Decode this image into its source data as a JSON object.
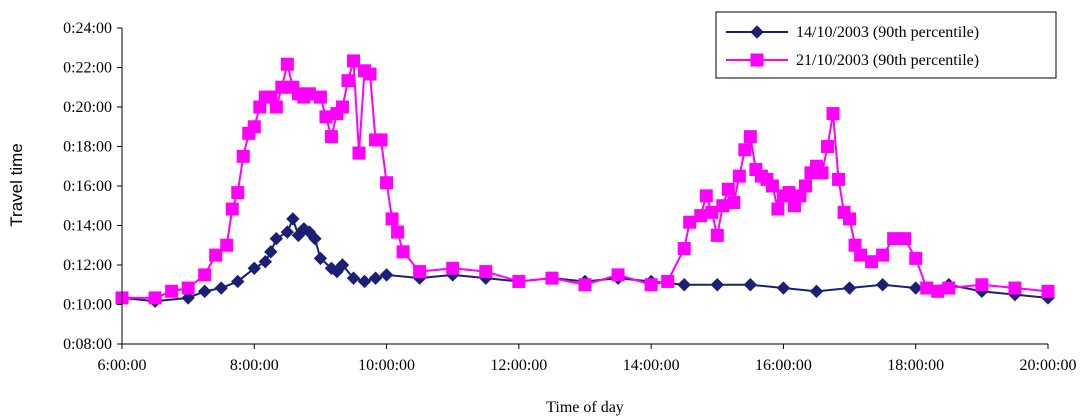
{
  "chart_data": {
    "type": "line",
    "xlabel": "Time of day",
    "ylabel": "Travel time",
    "xlim": [
      "6:00:00",
      "20:00:00"
    ],
    "ylim": [
      "0:08:00",
      "0:24:00"
    ],
    "x_ticks": [
      "6:00:00",
      "8:00:00",
      "10:00:00",
      "12:00:00",
      "14:00:00",
      "16:00:00",
      "18:00:00",
      "20:00:00"
    ],
    "y_ticks": [
      "0:08:00",
      "0:10:00",
      "0:12:00",
      "0:14:00",
      "0:16:00",
      "0:18:00",
      "0:20:00",
      "0:22:00",
      "0:24:00"
    ],
    "legend": "top-right",
    "series": [
      {
        "name": "14/10/2003 (90th percentile)",
        "color": "#1c1f73",
        "marker": "diamond",
        "x": [
          "6:00",
          "6:30",
          "7:00",
          "7:15",
          "7:30",
          "7:45",
          "8:00",
          "8:10",
          "8:15",
          "8:20",
          "8:30",
          "8:35",
          "8:40",
          "8:45",
          "8:50",
          "8:55",
          "9:00",
          "9:10",
          "9:15",
          "9:20",
          "9:30",
          "9:40",
          "9:50",
          "10:00",
          "10:30",
          "11:00",
          "11:30",
          "12:00",
          "12:30",
          "13:00",
          "13:30",
          "14:00",
          "14:30",
          "15:00",
          "15:30",
          "16:00",
          "16:30",
          "17:00",
          "17:30",
          "18:00",
          "18:30",
          "19:00",
          "19:30",
          "20:00"
        ],
        "y": [
          "0:10:20",
          "0:10:10",
          "0:10:20",
          "0:10:40",
          "0:10:50",
          "0:11:10",
          "0:11:50",
          "0:12:10",
          "0:12:40",
          "0:13:20",
          "0:13:40",
          "0:14:20",
          "0:13:30",
          "0:13:50",
          "0:13:40",
          "0:13:20",
          "0:12:20",
          "0:11:50",
          "0:11:40",
          "0:12:00",
          "0:11:20",
          "0:11:10",
          "0:11:20",
          "0:11:30",
          "0:11:20",
          "0:11:30",
          "0:11:20",
          "0:11:10",
          "0:11:20",
          "0:11:10",
          "0:11:20",
          "0:11:10",
          "0:11:00",
          "0:11:00",
          "0:11:00",
          "0:10:50",
          "0:10:40",
          "0:10:50",
          "0:11:00",
          "0:10:50",
          "0:11:00",
          "0:10:40",
          "0:10:30",
          "0:10:20"
        ]
      },
      {
        "name": "21/10/2003 (90th percentile)",
        "color": "#ff00ff",
        "marker": "square",
        "x": [
          "6:00",
          "6:30",
          "6:45",
          "7:00",
          "7:15",
          "7:25",
          "7:35",
          "7:40",
          "7:45",
          "7:50",
          "7:55",
          "8:00",
          "8:05",
          "8:10",
          "8:15",
          "8:20",
          "8:25",
          "8:30",
          "8:35",
          "8:40",
          "8:45",
          "8:50",
          "9:00",
          "9:05",
          "9:10",
          "9:15",
          "9:20",
          "9:25",
          "9:30",
          "9:35",
          "9:40",
          "9:45",
          "9:50",
          "9:55",
          "10:00",
          "10:05",
          "10:10",
          "10:15",
          "10:30",
          "11:00",
          "11:30",
          "12:00",
          "12:30",
          "13:00",
          "13:30",
          "14:00",
          "14:15",
          "14:30",
          "14:35",
          "14:45",
          "14:50",
          "14:55",
          "15:00",
          "15:05",
          "15:10",
          "15:15",
          "15:20",
          "15:25",
          "15:30",
          "15:35",
          "15:40",
          "15:45",
          "15:50",
          "15:55",
          "16:00",
          "16:05",
          "16:10",
          "16:15",
          "16:20",
          "16:25",
          "16:30",
          "16:35",
          "16:40",
          "16:45",
          "16:50",
          "16:55",
          "17:00",
          "17:05",
          "17:10",
          "17:20",
          "17:30",
          "17:40",
          "17:50",
          "18:00",
          "18:10",
          "18:20",
          "18:30",
          "19:00",
          "19:30",
          "20:00"
        ],
        "y": [
          "0:10:20",
          "0:10:20",
          "0:10:40",
          "0:10:50",
          "0:11:30",
          "0:12:30",
          "0:13:00",
          "0:14:50",
          "0:15:40",
          "0:17:30",
          "0:18:40",
          "0:19:00",
          "0:20:00",
          "0:20:30",
          "0:20:30",
          "0:20:00",
          "0:21:00",
          "0:22:10",
          "0:21:00",
          "0:20:40",
          "0:20:30",
          "0:20:40",
          "0:20:30",
          "0:19:30",
          "0:18:30",
          "0:19:40",
          "0:20:00",
          "0:21:20",
          "0:22:20",
          "0:17:40",
          "0:21:50",
          "0:21:40",
          "0:18:20",
          "0:18:20",
          "0:16:10",
          "0:14:20",
          "0:13:40",
          "0:12:40",
          "0:11:40",
          "0:11:50",
          "0:11:40",
          "0:11:10",
          "0:11:20",
          "0:11:00",
          "0:11:30",
          "0:11:00",
          "0:11:10",
          "0:12:50",
          "0:14:10",
          "0:14:30",
          "0:15:30",
          "0:14:40",
          "0:13:30",
          "0:15:00",
          "0:15:50",
          "0:15:10",
          "0:16:30",
          "0:17:50",
          "0:18:30",
          "0:16:50",
          "0:16:30",
          "0:16:20",
          "0:16:00",
          "0:14:50",
          "0:15:30",
          "0:15:40",
          "0:15:00",
          "0:15:30",
          "0:16:00",
          "0:16:40",
          "0:17:00",
          "0:16:40",
          "0:18:00",
          "0:19:40",
          "0:16:20",
          "0:14:40",
          "0:14:20",
          "0:13:00",
          "0:12:30",
          "0:12:10",
          "0:12:30",
          "0:13:20",
          "0:13:20",
          "0:12:20",
          "0:10:50",
          "0:10:40",
          "0:10:50",
          "0:11:00",
          "0:10:50",
          "0:10:40"
        ]
      }
    ]
  }
}
